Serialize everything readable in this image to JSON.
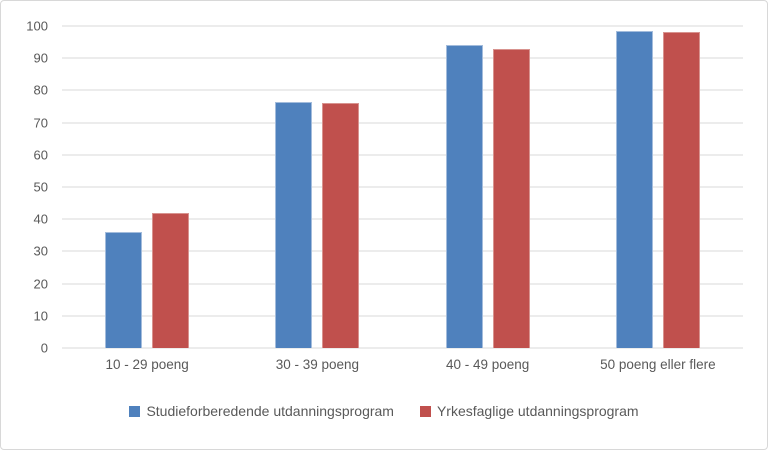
{
  "chart_data": {
    "type": "bar",
    "title": "",
    "xlabel": "",
    "ylabel": "",
    "categories": [
      "10 - 29 poeng",
      "30 - 39 poeng",
      "40 - 49 poeng",
      "50 poeng eller flere"
    ],
    "series": [
      {
        "name": "Studieforberedende utdanningsprogram",
        "color": "#4F81BD",
        "border_color": "#A3BCDC",
        "values": [
          36,
          76.5,
          94,
          98.5
        ]
      },
      {
        "name": "Yrkesfaglige utdanningsprogram",
        "color": "#C0504D",
        "border_color": "#D8938F",
        "values": [
          42,
          76,
          93,
          98
        ]
      }
    ],
    "ylim": [
      0,
      100
    ],
    "yticks": [
      0,
      10,
      20,
      30,
      40,
      50,
      60,
      70,
      80,
      90,
      100
    ],
    "grid": true,
    "legend_position": "bottom"
  },
  "colors": {
    "grid": "#D9D9D9",
    "axis_text": "#595959",
    "background": "#FFFFFF",
    "frame_border": "#D8D8D8"
  }
}
